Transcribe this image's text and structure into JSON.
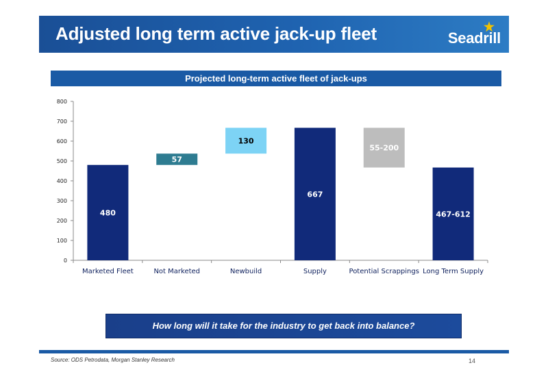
{
  "slide": {
    "title": "Adjusted long term active jack-up fleet",
    "logo_text": "Seadrill",
    "question": "How long will it take for the industry to get back into balance?",
    "source": "Source: ODS Petrodata, Morgan Stanley Research",
    "page_number": "14"
  },
  "chart_data": {
    "type": "bar",
    "subtype": "waterfall",
    "title": "Projected long-term active fleet of jack-ups",
    "categories": [
      "Marketed Fleet",
      "Not Marketed",
      "Newbuild",
      "Supply",
      "Potential Scrappings",
      "Long Term Supply"
    ],
    "bars": [
      {
        "category": "Marketed Fleet",
        "base": 0,
        "top": 480,
        "label": "480",
        "color": "#112a7a",
        "label_color": "#ffffff"
      },
      {
        "category": "Not Marketed",
        "base": 480,
        "top": 537,
        "label": "57",
        "color": "#2e7c91",
        "label_color": "#ffffff"
      },
      {
        "category": "Newbuild",
        "base": 537,
        "top": 667,
        "label": "130",
        "color": "#7dd3f5",
        "label_color": "#000000"
      },
      {
        "category": "Supply",
        "base": 0,
        "top": 667,
        "label": "667",
        "color": "#112a7a",
        "label_color": "#ffffff"
      },
      {
        "category": "Potential Scrappings",
        "base": 467,
        "top": 667,
        "label": "55-200",
        "color": "#bdbdbd",
        "label_color": "#ffffff"
      },
      {
        "category": "Long Term Supply",
        "base": 0,
        "top": 467,
        "label": "467-612",
        "color": "#112a7a",
        "label_color": "#ffffff"
      }
    ],
    "yticks": [
      0,
      100,
      200,
      300,
      400,
      500,
      600,
      700,
      800
    ],
    "ylim": [
      0,
      800
    ],
    "xlabel": "",
    "ylabel": "",
    "grid": false,
    "legend": "none"
  }
}
